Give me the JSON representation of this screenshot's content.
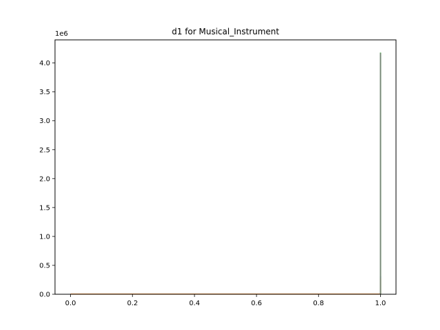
{
  "chart_data": {
    "type": "histogram",
    "title": "d1 for Musical_Instrument",
    "xlabel": "",
    "ylabel": "",
    "y_offset_text": "1e6",
    "xlim": [
      -0.05,
      1.05
    ],
    "ylim": [
      0,
      4400000
    ],
    "x_ticks": [
      0.0,
      0.2,
      0.4,
      0.6,
      0.8,
      1.0
    ],
    "x_tick_labels": [
      "0.0",
      "0.2",
      "0.4",
      "0.6",
      "0.8",
      "1.0"
    ],
    "y_ticks": [
      0,
      500000,
      1000000,
      1500000,
      2000000,
      2500000,
      3000000,
      3500000,
      4000000
    ],
    "y_tick_labels": [
      "0.0",
      "0.5",
      "1.0",
      "1.5",
      "2.0",
      "2.5",
      "3.0",
      "3.5",
      "4.0"
    ],
    "grid": false,
    "series": [
      {
        "color": "#1f77b4",
        "bars": [
          {
            "x0": 0.0,
            "x1": 0.998,
            "y": 8000
          },
          {
            "x0": 0.998,
            "x1": 1.002,
            "y": 310000
          }
        ]
      },
      {
        "color": "#ff7f0e",
        "bars": [
          {
            "x0": 0.0,
            "x1": 0.998,
            "y": 12000
          },
          {
            "x0": 0.998,
            "x1": 1.002,
            "y": 280000
          }
        ]
      },
      {
        "color": "#2ca02c",
        "bars": [
          {
            "x0": 0.0,
            "x1": 0.998,
            "y": 6000
          },
          {
            "x0": 0.998,
            "x1": 1.002,
            "y": 4180000
          }
        ]
      },
      {
        "color": "#7f7f7f",
        "bars": [
          {
            "x0": 0.0,
            "x1": 0.998,
            "y": 4000
          },
          {
            "x0": 0.998,
            "x1": 1.002,
            "y": 4170000
          }
        ]
      }
    ]
  }
}
